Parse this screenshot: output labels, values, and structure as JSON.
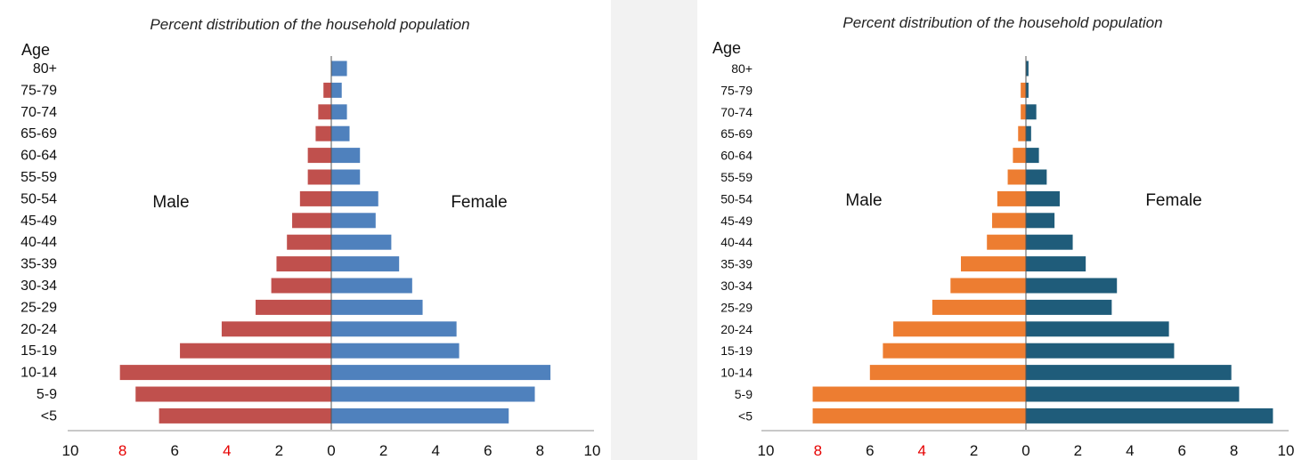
{
  "chart_data": [
    {
      "type": "bar",
      "orientation": "horizontal-pyramid",
      "title": "Percent distribution of the household population",
      "age_header": "Age",
      "left_label": "Male",
      "right_label": "Female",
      "categories": [
        "80+",
        "75-79",
        "70-74",
        "65-69",
        "60-64",
        "55-59",
        "50-54",
        "45-49",
        "40-44",
        "35-39",
        "30-34",
        "25-29",
        "20-24",
        "15-19",
        "10-14",
        "5-9",
        "<5"
      ],
      "series": [
        {
          "name": "Male",
          "values": [
            0.0,
            0.3,
            0.5,
            0.6,
            0.9,
            0.9,
            1.2,
            1.5,
            1.7,
            2.1,
            2.3,
            2.9,
            4.2,
            5.8,
            8.1,
            7.5,
            6.6
          ],
          "color": "#c0504d"
        },
        {
          "name": "Female",
          "values": [
            0.6,
            0.4,
            0.6,
            0.7,
            1.1,
            1.1,
            1.8,
            1.7,
            2.3,
            2.6,
            3.1,
            3.5,
            4.8,
            4.9,
            8.4,
            7.8,
            6.8
          ],
          "color": "#4f81bd"
        }
      ],
      "xticks": [
        "10",
        "8",
        "6",
        "4",
        "2",
        "0",
        "2",
        "4",
        "6",
        "8",
        "10"
      ],
      "highlight_ticks": [
        "8",
        "4"
      ],
      "highlight_color": "#e60000",
      "xlim": [
        -10,
        10
      ]
    },
    {
      "type": "bar",
      "orientation": "horizontal-pyramid",
      "title": "Percent distribution of the household population",
      "age_header": "Age",
      "left_label": "Male",
      "right_label": "Female",
      "categories": [
        "80+",
        "75-79",
        "70-74",
        "65-69",
        "60-64",
        "55-59",
        "50-54",
        "45-49",
        "40-44",
        "35-39",
        "30-34",
        "25-29",
        "20-24",
        "15-19",
        "10-14",
        "5-9",
        "<5"
      ],
      "series": [
        {
          "name": "Male",
          "values": [
            0.0,
            0.2,
            0.2,
            0.3,
            0.5,
            0.7,
            1.1,
            1.3,
            1.5,
            2.5,
            2.9,
            3.6,
            5.1,
            5.5,
            6.0,
            8.2,
            8.2
          ],
          "color": "#ed7d31"
        },
        {
          "name": "Female",
          "values": [
            0.1,
            0.1,
            0.4,
            0.2,
            0.5,
            0.8,
            1.3,
            1.1,
            1.8,
            2.3,
            3.5,
            3.3,
            5.5,
            5.7,
            7.9,
            8.2,
            9.5
          ],
          "color": "#1f5c7a"
        }
      ],
      "xticks": [
        "10",
        "8",
        "6",
        "4",
        "2",
        "0",
        "2",
        "4",
        "6",
        "8",
        "10"
      ],
      "highlight_ticks": [
        "8",
        "4"
      ],
      "highlight_color": "#e60000",
      "xlim": [
        -10,
        10
      ]
    }
  ]
}
